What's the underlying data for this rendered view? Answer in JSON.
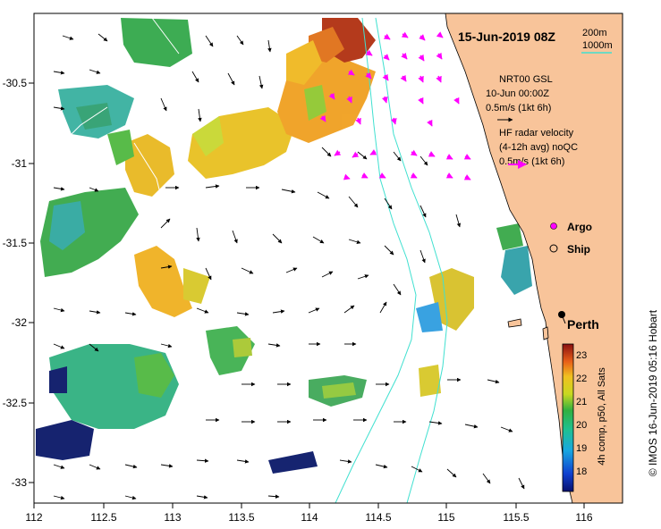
{
  "map": {
    "date_title": "15-Jun-2019 08Z",
    "credit": "© IMOS 16-Jun-2019 05:16 Hobart",
    "city_label": "Perth",
    "x_ticks": [
      "112",
      "112.5",
      "113",
      "113.5",
      "114",
      "114.5",
      "115",
      "115.5",
      "116"
    ],
    "y_ticks": [
      "-30.5",
      "-31",
      "-31.5",
      "-32",
      "-32.5",
      "-33"
    ],
    "lon_range": [
      112,
      116.3
    ],
    "lat_range": [
      -30.1,
      -33.1
    ]
  },
  "legend": {
    "bathy_200": "200m",
    "bathy_1000": "1000m",
    "bathy_1000_color": "#40e0d0",
    "model_lines": [
      "NRT00 GSL",
      "10-Jun 00:00Z",
      "0.5m/s (1kt 6h)"
    ],
    "radar_lines": [
      "HF radar velocity",
      "(4-12h avg) noQC",
      "0.5m/s (1kt 6h)"
    ],
    "radar_color": "#ff00ff",
    "argo_label": "Argo",
    "ship_label": "Ship",
    "land_color": "#f8c49a"
  },
  "colorbar": {
    "label": "4h comp, p50, All Sats",
    "ticks": [
      "18",
      "19",
      "20",
      "21",
      "22",
      "23"
    ],
    "range": [
      17.5,
      23.5
    ]
  }
}
